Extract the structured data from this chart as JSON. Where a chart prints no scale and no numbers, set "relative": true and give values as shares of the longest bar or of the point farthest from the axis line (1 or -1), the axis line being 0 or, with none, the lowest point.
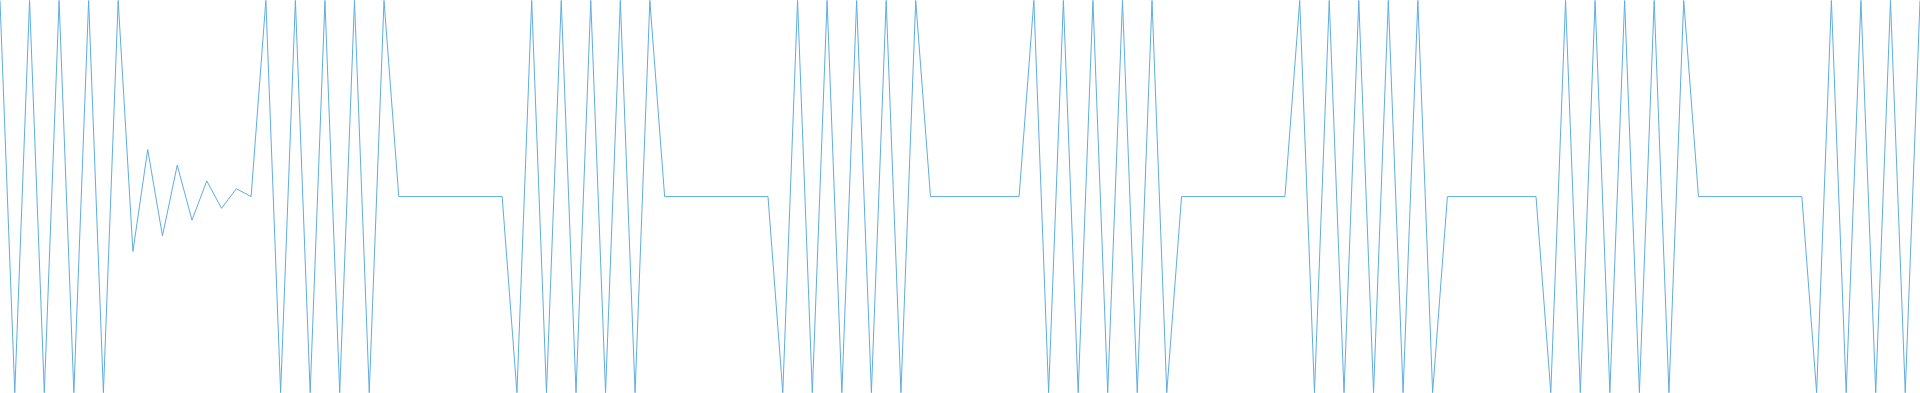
{
  "chart_data": {
    "type": "line",
    "relative": true,
    "color": "#5dade2",
    "marker": "none",
    "line_style": "solid",
    "categories": [
      null,
      null,
      null,
      null,
      null,
      null,
      null,
      null,
      null,
      null,
      null,
      null,
      null,
      null,
      null,
      null,
      null,
      null,
      null,
      null,
      null,
      null,
      null,
      null,
      null,
      null,
      null,
      null,
      null,
      null,
      null,
      null,
      null,
      null,
      null,
      null,
      null,
      null,
      null,
      null,
      null,
      null,
      null,
      null,
      null,
      null,
      null,
      null,
      null,
      null,
      null,
      null,
      null,
      null,
      null,
      null,
      null,
      null,
      null,
      null,
      null,
      null,
      null,
      null,
      null,
      null,
      null,
      null,
      null,
      null,
      null,
      null,
      null,
      null,
      null,
      null,
      null,
      null,
      null,
      null,
      null,
      null,
      null,
      null,
      null,
      null,
      null,
      null,
      null,
      null,
      null,
      null,
      null,
      null,
      null,
      null,
      null,
      null,
      null,
      null,
      null,
      null,
      null,
      null,
      null,
      null,
      null,
      null,
      null,
      null,
      null,
      null,
      null,
      null,
      null,
      null,
      null,
      null,
      null,
      null,
      null,
      null,
      null,
      null,
      null,
      null,
      null,
      null,
      null,
      null,
      null
    ],
    "values": [
      1,
      0,
      1,
      0,
      1,
      0,
      1,
      0,
      1,
      0.36,
      0.62,
      0.4,
      0.58,
      0.44,
      0.54,
      0.47,
      0.52,
      0.5,
      1,
      0,
      1,
      0,
      1,
      0,
      1,
      0,
      1,
      0.5,
      0.5,
      0.5,
      0.5,
      0.5,
      0.5,
      0.5,
      0.5,
      0,
      1,
      0,
      1,
      0,
      1,
      0,
      1,
      0,
      1,
      0.5,
      0.5,
      0.5,
      0.5,
      0.5,
      0.5,
      0.5,
      0.5,
      0,
      1,
      0,
      1,
      0,
      1,
      0,
      1,
      0,
      1,
      0.5,
      0.5,
      0.5,
      0.5,
      0.5,
      0.5,
      0.5,
      1,
      0,
      1,
      0,
      1,
      0,
      1,
      0,
      1,
      0,
      0.5,
      0.5,
      0.5,
      0.5,
      0.5,
      0.5,
      0.5,
      0.5,
      1,
      0,
      1,
      0,
      1,
      0,
      1,
      0,
      1,
      0,
      0.5,
      0.5,
      0.5,
      0.5,
      0.5,
      0.5,
      0.5,
      0,
      1,
      0,
      1,
      0,
      1,
      0,
      1,
      0,
      1,
      0.5,
      0.5,
      0.5,
      0.5,
      0.5,
      0.5,
      0.5,
      0.5,
      0,
      1,
      0,
      1,
      0,
      1,
      0,
      1
    ]
  }
}
